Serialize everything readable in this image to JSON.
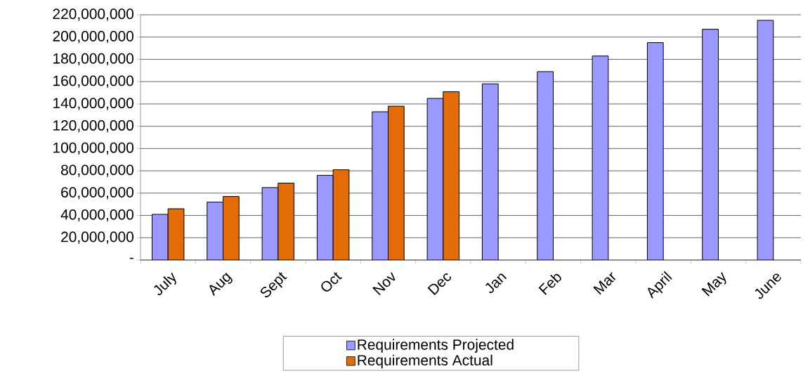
{
  "chart_data": {
    "type": "bar",
    "categories": [
      "July",
      "Aug",
      "Sept",
      "Oct",
      "Nov",
      "Dec",
      "Jan",
      "Feb",
      "Mar",
      "April",
      "May",
      "June"
    ],
    "series": [
      {
        "name": "Requirements Projected",
        "color": "#9999ff",
        "values": [
          41000000,
          52000000,
          65000000,
          76000000,
          133000000,
          145000000,
          158000000,
          169000000,
          183000000,
          195000000,
          207000000,
          215000000
        ]
      },
      {
        "name": "Requirements Actual",
        "color": "#e36c09",
        "values": [
          46000000,
          57000000,
          69000000,
          81000000,
          138000000,
          151000000,
          null,
          null,
          null,
          null,
          null,
          null
        ]
      }
    ],
    "ylim": [
      0,
      220000000
    ],
    "yticks": [
      {
        "value": 0,
        "label": "-"
      },
      {
        "value": 20000000,
        "label": "20,000,000"
      },
      {
        "value": 40000000,
        "label": "40,000,000"
      },
      {
        "value": 60000000,
        "label": "60,000,000"
      },
      {
        "value": 80000000,
        "label": "80,000,000"
      },
      {
        "value": 100000000,
        "label": "100,000,000"
      },
      {
        "value": 120000000,
        "label": "120,000,000"
      },
      {
        "value": 140000000,
        "label": "140,000,000"
      },
      {
        "value": 160000000,
        "label": "160,000,000"
      },
      {
        "value": 180000000,
        "label": "180,000,000"
      },
      {
        "value": 200000000,
        "label": "200,000,000"
      },
      {
        "value": 220000000,
        "label": "220,000,000"
      }
    ],
    "grid": "y",
    "legend": "bottom"
  }
}
